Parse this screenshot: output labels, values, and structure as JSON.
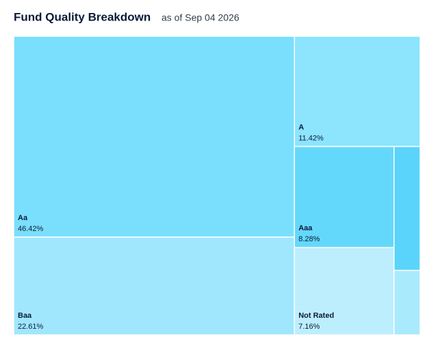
{
  "chart_data": {
    "type": "treemap",
    "title": "Fund Quality Breakdown",
    "subtitle": "as of Sep 04 2026",
    "categories": [
      "Aa",
      "Baa",
      "A",
      "Aaa",
      "Not Rated",
      null,
      null
    ],
    "values": [
      46.42,
      22.61,
      11.42,
      8.28,
      7.16,
      2.67,
      1.39
    ],
    "value_labels": [
      "46.42%",
      "22.61%",
      "11.42%",
      "8.28%",
      "7.16%",
      null,
      null
    ],
    "colors": [
      "#7adffc",
      "#a0e7fd",
      "#8ce4fd",
      "#64d8fb",
      "#bdeefd",
      "#5ad4fb",
      "#aaeafd"
    ]
  }
}
